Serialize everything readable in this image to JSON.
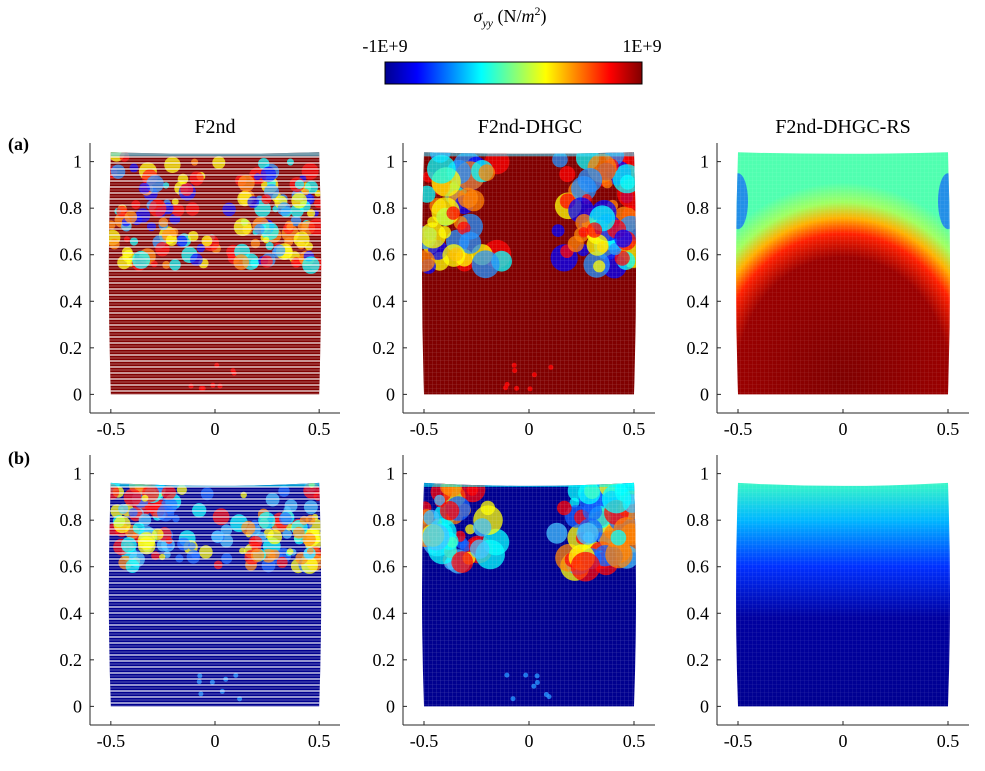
{
  "colorbar": {
    "label_main": "σ",
    "label_sub": "yy",
    "label_unit_open": " (N/",
    "label_unit_m": "m",
    "label_unit_exp": "2",
    "label_unit_close": ")",
    "min_label": "-1E+9",
    "max_label": "1E+9",
    "colormap": "jet",
    "range": [
      -1000000000,
      1000000000
    ]
  },
  "panel_labels": [
    "(a)",
    "(b)"
  ],
  "column_titles": [
    "F2nd",
    "F2nd-DHGC",
    "F2nd-DHGC-RS"
  ],
  "colors": {
    "jet_dark_blue": "#00008f",
    "jet_blue": "#0000ff",
    "jet_cyan": "#00ffff",
    "jet_yellow": "#ffff00",
    "jet_red": "#ff0000",
    "jet_dark_red": "#800000"
  },
  "chart_data": [
    {
      "type": "heatmap",
      "row": "(a)",
      "title": "F2nd",
      "dominant_stress": "tension (1E+9)",
      "pattern": "noisy",
      "xticks": [
        "-0.5",
        "0",
        "0.5"
      ],
      "yticks": [
        "0",
        "0.2",
        "0.4",
        "0.6",
        "0.8",
        "1"
      ],
      "xlim": [
        -0.6,
        0.6
      ],
      "ylim": [
        -0.08,
        1.08
      ],
      "domain_x": [
        -0.5,
        0.5
      ],
      "top_y": 1.04
    },
    {
      "type": "heatmap",
      "row": "(a)",
      "title": "F2nd-DHGC",
      "dominant_stress": "tension (1E+9)",
      "pattern": "patchy",
      "xticks": [
        "-0.5",
        "0",
        "0.5"
      ],
      "yticks": [
        "0",
        "0.2",
        "0.4",
        "0.6",
        "0.8",
        "1"
      ],
      "xlim": [
        -0.6,
        0.6
      ],
      "ylim": [
        -0.08,
        1.08
      ],
      "domain_x": [
        -0.5,
        0.5
      ],
      "top_y": 1.04
    },
    {
      "type": "heatmap",
      "row": "(a)",
      "title": "F2nd-DHGC-RS",
      "dominant_stress": "tension (1E+9)",
      "pattern": "smooth",
      "xticks": [
        "-0.5",
        "0",
        "0.5"
      ],
      "yticks": [
        "0",
        "0.2",
        "0.4",
        "0.6",
        "0.8",
        "1"
      ],
      "xlim": [
        -0.6,
        0.6
      ],
      "ylim": [
        -0.08,
        1.08
      ],
      "domain_x": [
        -0.5,
        0.5
      ],
      "top_y": 1.04
    },
    {
      "type": "heatmap",
      "row": "(b)",
      "title": "",
      "dominant_stress": "compression (-1E+9)",
      "pattern": "noisy",
      "xticks": [
        "-0.5",
        "0",
        "0.5"
      ],
      "yticks": [
        "0",
        "0.2",
        "0.4",
        "0.6",
        "0.8",
        "1"
      ],
      "xlim": [
        -0.6,
        0.6
      ],
      "ylim": [
        -0.08,
        1.08
      ],
      "domain_x": [
        -0.5,
        0.5
      ],
      "top_y": 0.96
    },
    {
      "type": "heatmap",
      "row": "(b)",
      "title": "",
      "dominant_stress": "compression (-1E+9)",
      "pattern": "patchy",
      "xticks": [
        "-0.5",
        "0",
        "0.5"
      ],
      "yticks": [
        "0",
        "0.2",
        "0.4",
        "0.6",
        "0.8",
        "1"
      ],
      "xlim": [
        -0.6,
        0.6
      ],
      "ylim": [
        -0.08,
        1.08
      ],
      "domain_x": [
        -0.5,
        0.5
      ],
      "top_y": 0.96
    },
    {
      "type": "heatmap",
      "row": "(b)",
      "title": "",
      "dominant_stress": "compression (-1E+9)",
      "pattern": "smooth",
      "xticks": [
        "-0.5",
        "0",
        "0.5"
      ],
      "yticks": [
        "0",
        "0.2",
        "0.4",
        "0.6",
        "0.8",
        "1"
      ],
      "xlim": [
        -0.6,
        0.6
      ],
      "ylim": [
        -0.08,
        1.08
      ],
      "domain_x": [
        -0.5,
        0.5
      ],
      "top_y": 0.96
    }
  ]
}
